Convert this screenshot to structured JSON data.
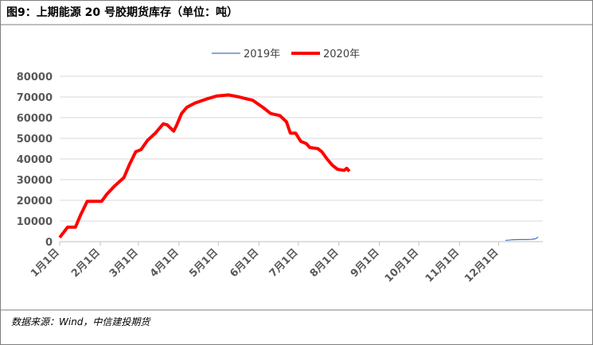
{
  "header": {
    "title": "图9：上期能源 20 号胶期货库存（单位：吨）"
  },
  "chart_data": {
    "type": "line",
    "xlim": [
      0,
      365
    ],
    "xticks": [
      {
        "value": 0,
        "label": "1月1日"
      },
      {
        "value": 31,
        "label": "2月1日"
      },
      {
        "value": 60,
        "label": "3月1日"
      },
      {
        "value": 91,
        "label": "4月1日"
      },
      {
        "value": 121,
        "label": "5月1日"
      },
      {
        "value": 152,
        "label": "6月1日"
      },
      {
        "value": 182,
        "label": "7月1日"
      },
      {
        "value": 213,
        "label": "8月1日"
      },
      {
        "value": 244,
        "label": "9月1日"
      },
      {
        "value": 274,
        "label": "10月1日"
      },
      {
        "value": 305,
        "label": "11月1日"
      },
      {
        "value": 335,
        "label": "12月1日"
      }
    ],
    "ylim": [
      0,
      80000
    ],
    "yticks": [
      0,
      10000,
      20000,
      30000,
      40000,
      50000,
      60000,
      70000,
      80000
    ],
    "grid": true,
    "legend": "top",
    "series": [
      {
        "name": "2019年",
        "color": "#4472c4",
        "width": 1.2,
        "x": [
          340,
          345,
          350,
          355,
          360,
          363,
          365
        ],
        "values": [
          600,
          900,
          1000,
          1000,
          1100,
          1400,
          2200
        ]
      },
      {
        "name": "2020年",
        "color": "#ff0000",
        "width": 4,
        "x": [
          0,
          6,
          12,
          16,
          21,
          32,
          36,
          42,
          49,
          53,
          58,
          62,
          67,
          73,
          79,
          82,
          87,
          89,
          93,
          97,
          103,
          112,
          120,
          129,
          137,
          143,
          147,
          155,
          161,
          168,
          173,
          176,
          180,
          184,
          188,
          191,
          197,
          200,
          204,
          208,
          212,
          217,
          219,
          221
        ],
        "values": [
          2000,
          7000,
          7000,
          13000,
          19500,
          19500,
          23000,
          27000,
          31000,
          37000,
          43500,
          44500,
          49000,
          52500,
          57000,
          56500,
          53500,
          56000,
          62000,
          65000,
          67000,
          69000,
          70500,
          71000,
          70000,
          69000,
          68500,
          65000,
          62000,
          61000,
          58000,
          52500,
          52500,
          48500,
          47500,
          45500,
          45000,
          43500,
          40000,
          37000,
          35000,
          34500,
          35500,
          34000
        ]
      }
    ]
  },
  "footer": {
    "source": "数据来源：Wind，中信建投期货"
  }
}
